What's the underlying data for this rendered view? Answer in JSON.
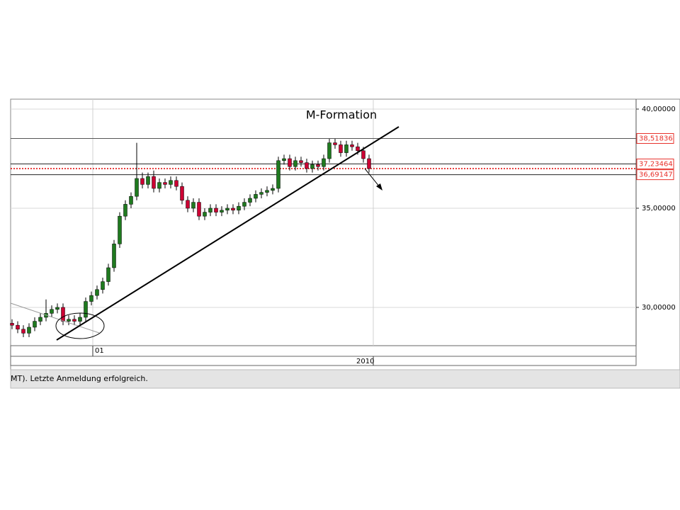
{
  "chart_data": {
    "type": "candlestick",
    "title": "M-Formation",
    "status_text": "MT). Letzte Anmeldung erfolgreich.",
    "x": [
      0,
      1,
      2,
      3,
      4,
      5,
      6,
      7,
      8,
      9,
      10,
      11,
      12,
      13,
      14,
      15,
      16,
      17,
      18,
      19,
      20,
      21,
      22,
      23,
      24,
      25,
      26,
      27,
      28,
      29,
      30,
      31,
      32,
      33,
      34,
      35,
      36,
      37,
      38,
      39,
      40,
      41,
      42,
      43,
      44,
      45,
      46,
      47,
      48,
      49,
      50,
      51,
      52,
      53,
      54,
      55,
      56,
      57,
      58,
      59,
      60,
      61,
      62,
      63
    ],
    "open": [
      29.2,
      29.1,
      28.9,
      28.7,
      29.0,
      29.3,
      29.5,
      29.7,
      29.9,
      30.0,
      29.3,
      29.4,
      29.3,
      29.5,
      30.3,
      30.6,
      30.9,
      31.3,
      32.0,
      33.2,
      34.6,
      35.2,
      35.6,
      36.5,
      36.2,
      36.6,
      36.0,
      36.3,
      36.2,
      36.4,
      36.1,
      35.4,
      35.0,
      35.3,
      34.6,
      34.8,
      35.0,
      34.8,
      34.9,
      35.0,
      34.9,
      35.1,
      35.3,
      35.5,
      35.7,
      35.8,
      35.9,
      36.0,
      37.4,
      37.5,
      37.1,
      37.4,
      37.3,
      37.0,
      37.2,
      37.1,
      37.5,
      38.3,
      38.2,
      37.8,
      38.2,
      38.1,
      37.9,
      37.5
    ],
    "high": [
      29.4,
      29.3,
      29.1,
      29.2,
      29.5,
      29.7,
      30.4,
      30.1,
      30.2,
      30.2,
      29.6,
      29.6,
      29.7,
      30.5,
      30.8,
      31.1,
      31.5,
      32.2,
      33.4,
      34.8,
      35.4,
      35.8,
      38.3,
      36.8,
      36.8,
      36.9,
      36.5,
      36.5,
      36.6,
      36.6,
      36.3,
      35.6,
      35.5,
      35.5,
      35.0,
      35.2,
      35.2,
      35.1,
      35.2,
      35.2,
      35.3,
      35.5,
      35.7,
      35.9,
      36.0,
      36.1,
      36.2,
      37.6,
      37.7,
      37.7,
      37.6,
      37.6,
      37.5,
      37.4,
      37.4,
      37.7,
      38.5,
      38.5,
      38.4,
      38.4,
      38.4,
      38.3,
      38.1,
      37.7
    ],
    "low": [
      28.9,
      28.7,
      28.5,
      28.5,
      28.8,
      29.1,
      29.3,
      29.5,
      29.7,
      29.1,
      29.1,
      29.1,
      29.1,
      29.3,
      30.1,
      30.4,
      30.7,
      31.1,
      31.8,
      33.0,
      34.4,
      35.0,
      35.4,
      36.0,
      36.0,
      35.8,
      35.8,
      36.0,
      36.0,
      35.9,
      35.2,
      34.8,
      34.8,
      34.4,
      34.4,
      34.6,
      34.6,
      34.6,
      34.7,
      34.7,
      34.7,
      34.9,
      35.1,
      35.3,
      35.5,
      35.6,
      35.7,
      35.8,
      37.2,
      36.9,
      36.9,
      37.1,
      36.8,
      36.8,
      36.9,
      36.9,
      37.3,
      38.0,
      37.6,
      37.6,
      37.9,
      37.7,
      37.3,
      36.8
    ],
    "close": [
      29.1,
      28.9,
      28.7,
      29.0,
      29.3,
      29.5,
      29.7,
      29.9,
      30.0,
      29.3,
      29.4,
      29.3,
      29.5,
      30.3,
      30.6,
      30.9,
      31.3,
      32.0,
      33.2,
      34.6,
      35.2,
      35.6,
      36.5,
      36.2,
      36.6,
      36.0,
      36.3,
      36.2,
      36.4,
      36.1,
      35.4,
      35.0,
      35.3,
      34.6,
      34.8,
      35.0,
      34.8,
      34.9,
      35.0,
      34.9,
      35.1,
      35.3,
      35.5,
      35.7,
      35.8,
      35.9,
      36.0,
      37.4,
      37.5,
      37.1,
      37.4,
      37.3,
      37.0,
      37.2,
      37.1,
      37.5,
      38.3,
      38.2,
      37.8,
      38.2,
      38.1,
      37.9,
      37.5,
      37.0
    ],
    "up_color": "#1f7a1f",
    "down_color": "#cc0033",
    "xlim": [
      -0.25,
      110.125
    ],
    "xticks": [
      {
        "value": 14.25,
        "label": "01"
      },
      {
        "value": 63.75,
        "label": "2010"
      }
    ],
    "ylim": [
      28.07,
      40.5
    ],
    "yticks": [
      {
        "value": 30,
        "label": "30,00000"
      },
      {
        "value": 35,
        "label": "35,00000"
      },
      {
        "value": 40,
        "label": "40,00000"
      }
    ],
    "grid": true,
    "levels": [
      {
        "value": 38.51836,
        "label": "38,51836"
      },
      {
        "value": 37.23464,
        "label": "37,23464"
      },
      {
        "value": 36.69147,
        "label": "36,69147"
      }
    ],
    "level_color": "#e8302a",
    "price_line": {
      "value": 37.0,
      "color": "#e00000"
    }
  }
}
